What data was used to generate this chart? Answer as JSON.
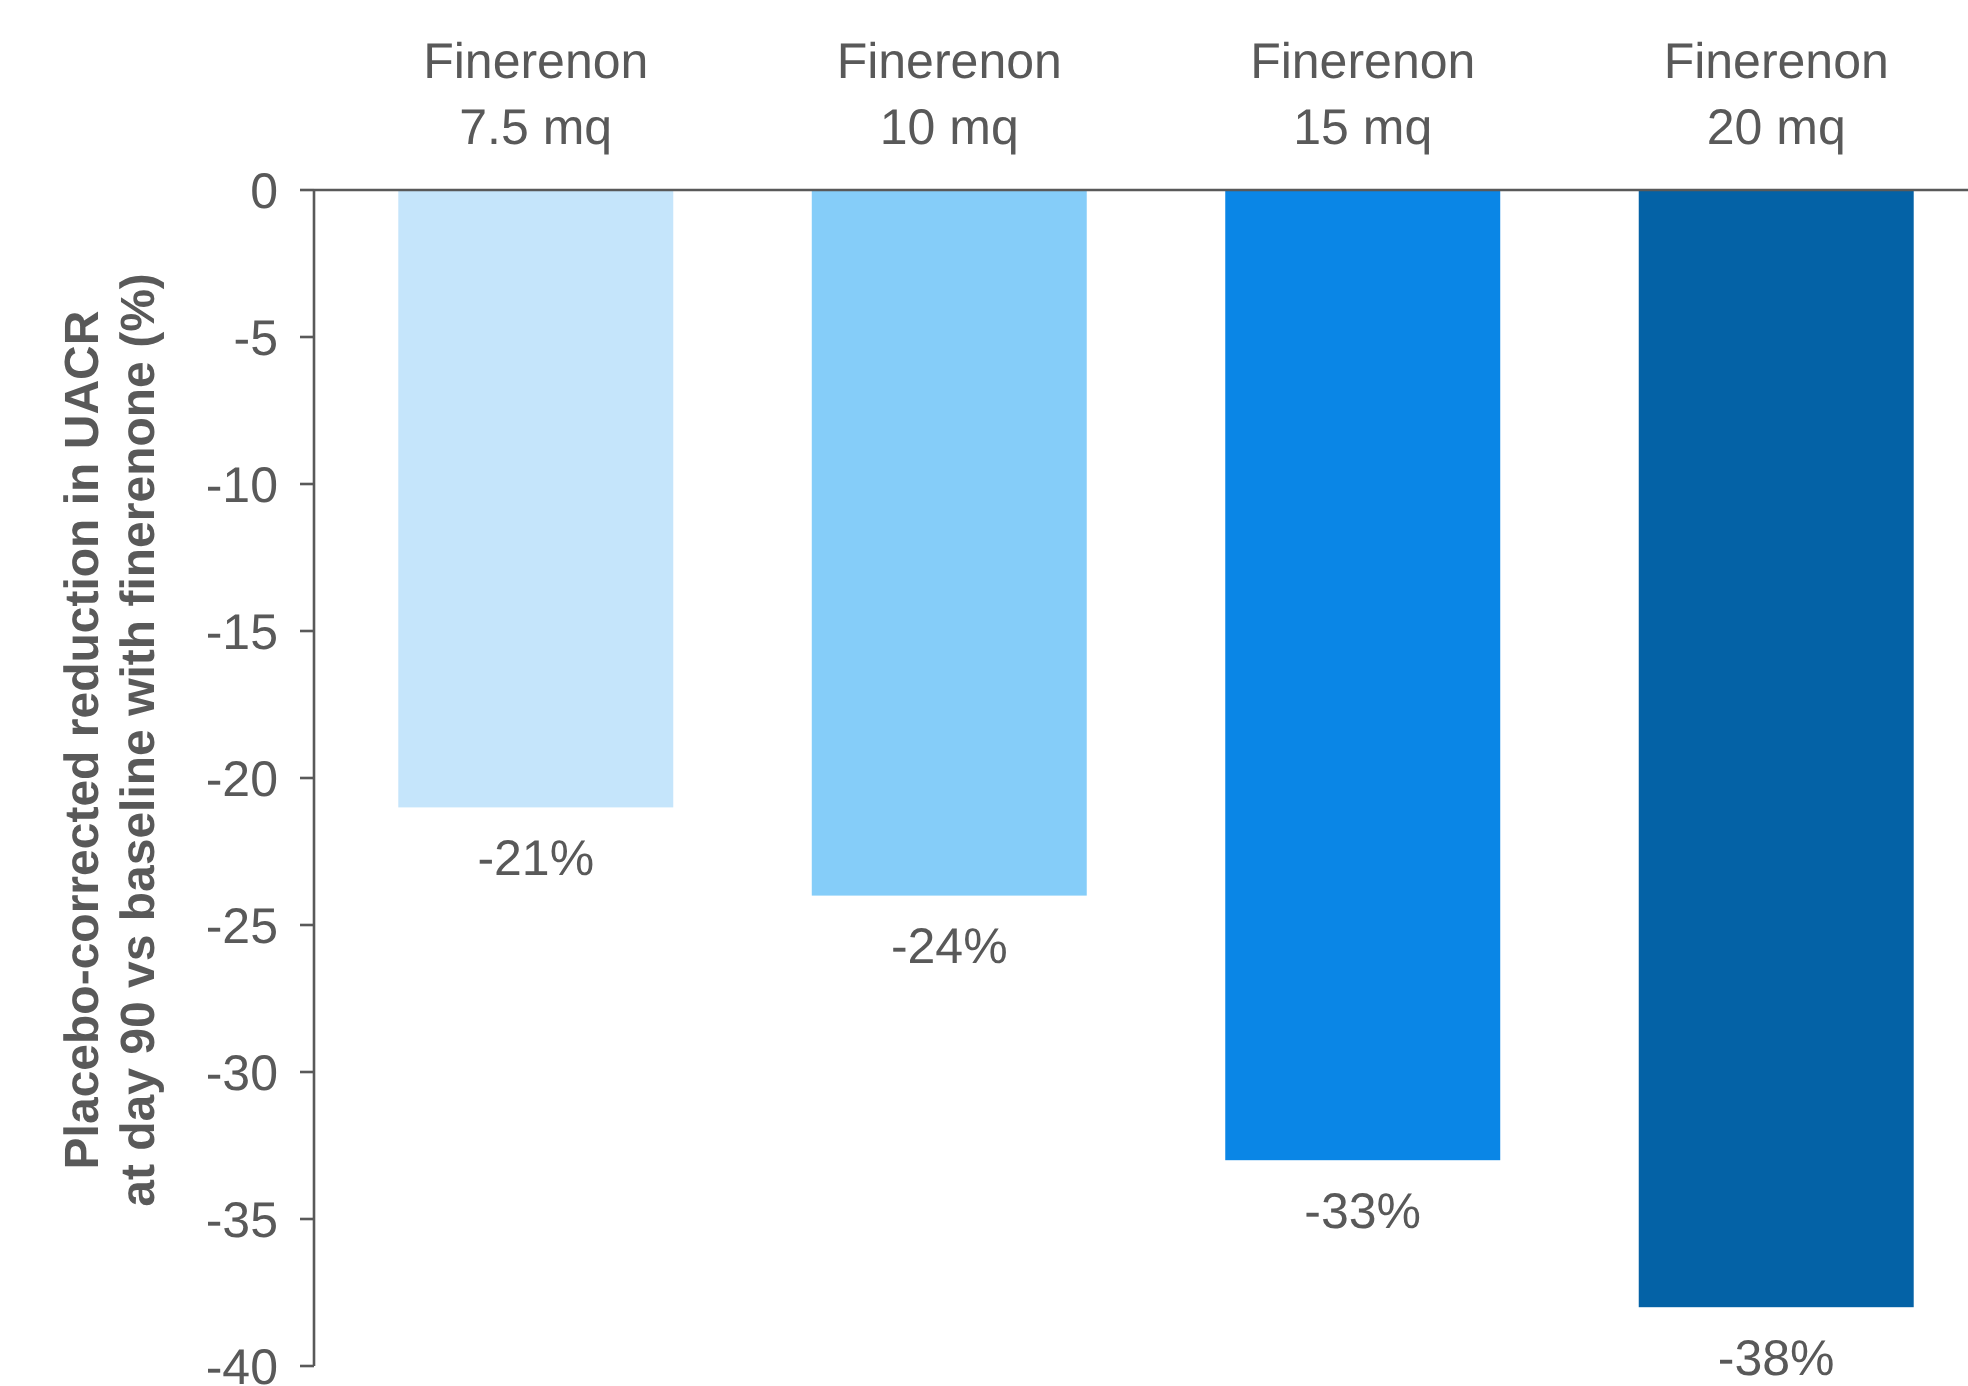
{
  "chart_data": {
    "type": "bar",
    "ylabel": "Placebo-corrected reduction in UACR\nat day 90 vs baseline with finerenone (%)",
    "categories": [
      "Finerenon 7.5 mq",
      "Finerenon 10 mq",
      "Finerenon 15 mq",
      "Finerenon 20 mq"
    ],
    "values": [
      -21,
      -24,
      -33,
      -38
    ],
    "colors": [
      "#c5e5fb",
      "#85cdf9",
      "#0a86e6",
      "#0462a6"
    ],
    "value_labels": [
      "-21%",
      "-24%",
      "-33%",
      "-38%"
    ],
    "ylim": [
      -40,
      0
    ],
    "yticks": [
      0,
      -5,
      -10,
      -15,
      -20,
      -25,
      -30,
      -35,
      -40
    ]
  }
}
